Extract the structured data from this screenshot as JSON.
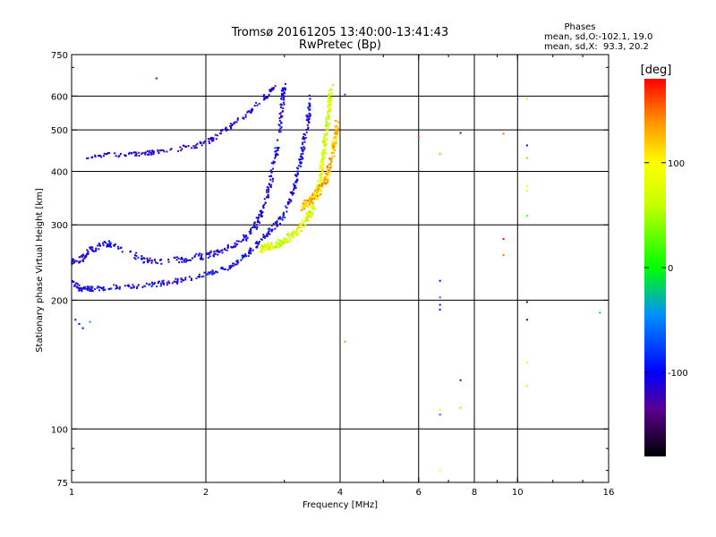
{
  "chart_data": {
    "type": "scatter",
    "title": "Tromsø 20161205 13:40:00-13:41:43",
    "subtitle": "RwPretec (Bp)",
    "stats": {
      "heading": "Phases",
      "line1": "mean, sd,O:-102.1, 19.0",
      "line2": "mean, sd,X:  93.3, 20.2"
    },
    "xlabel": "Frequency [MHz]",
    "ylabel": "Stationary phase Virtual Height [km]",
    "x_scale": "log",
    "y_scale": "log",
    "xlim": [
      1,
      16
    ],
    "ylim": [
      75,
      750
    ],
    "x_ticks": [
      {
        "value": 1,
        "label": "1"
      },
      {
        "value": 2,
        "label": "2"
      },
      {
        "value": 4,
        "label": "4"
      },
      {
        "value": 6,
        "label": "6"
      },
      {
        "value": 8,
        "label": "8"
      },
      {
        "value": 10,
        "label": "10"
      },
      {
        "value": 16,
        "label": "16"
      }
    ],
    "x_grid": [
      2,
      4,
      6,
      8,
      10
    ],
    "y_ticks": [
      {
        "value": 75,
        "label": "75"
      },
      {
        "value": 100,
        "label": "100"
      },
      {
        "value": 200,
        "label": "200"
      },
      {
        "value": 300,
        "label": "300"
      },
      {
        "value": 400,
        "label": "400"
      },
      {
        "value": 500,
        "label": "500"
      },
      {
        "value": 600,
        "label": "600"
      },
      {
        "value": 750,
        "label": "750"
      }
    ],
    "y_grid": [
      100,
      200,
      300,
      400,
      500,
      600
    ],
    "grid": true,
    "colorbar": {
      "label": "[deg]",
      "min": -180,
      "max": 180,
      "ticks": [
        {
          "value": 100,
          "label": "100"
        },
        {
          "value": 0,
          "label": "0"
        },
        {
          "value": -100,
          "label": "-100"
        }
      ],
      "stops": [
        {
          "value": -180,
          "color": "#000000"
        },
        {
          "value": -135,
          "color": "#5a0090"
        },
        {
          "value": -100,
          "color": "#0000ff"
        },
        {
          "value": -45,
          "color": "#0090ff"
        },
        {
          "value": 0,
          "color": "#00ff00"
        },
        {
          "value": 60,
          "color": "#c8ff00"
        },
        {
          "value": 100,
          "color": "#ffff00"
        },
        {
          "value": 140,
          "color": "#ff9000"
        },
        {
          "value": 180,
          "color": "#ff0000"
        }
      ]
    },
    "traces": [
      {
        "name": "",
        "points": [
          [
            1.08,
            430
          ],
          [
            1.15,
            436
          ],
          [
            1.3,
            437
          ],
          [
            1.45,
            440
          ],
          [
            1.6,
            446
          ],
          [
            1.75,
            452
          ],
          [
            1.9,
            460
          ],
          [
            2.05,
            472
          ],
          [
            2.2,
            500
          ],
          [
            2.4,
            530
          ],
          [
            2.6,
            570
          ],
          [
            2.75,
            605
          ],
          [
            2.85,
            630
          ]
        ],
        "phase": [
          -135,
          -95
        ],
        "spread": 0.012,
        "n": 170
      },
      {
        "name": "",
        "points": [
          [
            1.0,
            245
          ],
          [
            1.05,
            250
          ],
          [
            1.1,
            262
          ],
          [
            1.2,
            272
          ],
          [
            1.3,
            262
          ],
          [
            1.45,
            248
          ],
          [
            1.6,
            246
          ],
          [
            1.8,
            250
          ],
          [
            2.0,
            254
          ],
          [
            2.2,
            262
          ],
          [
            2.4,
            276
          ],
          [
            2.55,
            290
          ],
          [
            2.65,
            315
          ],
          [
            2.75,
            350
          ],
          [
            2.82,
            395
          ],
          [
            2.88,
            450
          ],
          [
            2.94,
            520
          ],
          [
            2.98,
            600
          ],
          [
            3.0,
            640
          ]
        ],
        "phase": [
          -128,
          -85
        ],
        "spread": 0.016,
        "n": 360
      },
      {
        "name": "",
        "points": [
          [
            1.0,
            220
          ],
          [
            1.05,
            212
          ],
          [
            1.15,
            213
          ],
          [
            1.3,
            215
          ],
          [
            1.5,
            217
          ],
          [
            1.7,
            221
          ],
          [
            1.9,
            226
          ],
          [
            2.1,
            233
          ],
          [
            2.3,
            242
          ],
          [
            2.5,
            258
          ],
          [
            2.7,
            280
          ],
          [
            2.85,
            298
          ],
          [
            3.0,
            318
          ],
          [
            3.1,
            345
          ],
          [
            3.2,
            390
          ],
          [
            3.3,
            450
          ],
          [
            3.38,
            520
          ],
          [
            3.45,
            600
          ]
        ],
        "phase": [
          -135,
          -75
        ],
        "spread": 0.013,
        "n": 380
      },
      {
        "name": "",
        "points": [
          [
            2.65,
            262
          ],
          [
            2.8,
            268
          ],
          [
            3.0,
            275
          ],
          [
            3.2,
            290
          ],
          [
            3.4,
            312
          ],
          [
            3.52,
            345
          ],
          [
            3.6,
            380
          ],
          [
            3.66,
            430
          ],
          [
            3.72,
            490
          ],
          [
            3.78,
            560
          ],
          [
            3.82,
            630
          ]
        ],
        "phase": [
          40,
          115
        ],
        "spread": 0.02,
        "n": 360
      },
      {
        "name": "",
        "points": [
          [
            3.3,
            330
          ],
          [
            3.4,
            340
          ],
          [
            3.5,
            350
          ],
          [
            3.6,
            362
          ],
          [
            3.7,
            380
          ],
          [
            3.78,
            405
          ],
          [
            3.85,
            440
          ],
          [
            3.9,
            480
          ],
          [
            3.95,
            520
          ]
        ],
        "phase": [
          95,
          155
        ],
        "spread": 0.022,
        "n": 230
      }
    ],
    "isolated_points": [
      {
        "x": 1.55,
        "y": 660,
        "phase": -140
      },
      {
        "x": 1.02,
        "y": 180,
        "phase": -110
      },
      {
        "x": 1.04,
        "y": 176,
        "phase": -100
      },
      {
        "x": 1.06,
        "y": 172,
        "phase": -105
      },
      {
        "x": 1.1,
        "y": 178,
        "phase": -40
      },
      {
        "x": 4.1,
        "y": 605,
        "phase": -70
      },
      {
        "x": 4.1,
        "y": 160,
        "phase": 140
      },
      {
        "x": 6.0,
        "y": 482,
        "phase": 160
      },
      {
        "x": 6.7,
        "y": 440,
        "phase": 30
      },
      {
        "x": 6.7,
        "y": 222,
        "phase": -100
      },
      {
        "x": 6.7,
        "y": 203,
        "phase": -60
      },
      {
        "x": 6.7,
        "y": 195,
        "phase": -100
      },
      {
        "x": 6.7,
        "y": 190,
        "phase": -130
      },
      {
        "x": 6.7,
        "y": 111,
        "phase": 100
      },
      {
        "x": 6.7,
        "y": 108,
        "phase": -60
      },
      {
        "x": 6.7,
        "y": 80,
        "phase": 100
      },
      {
        "x": 7.45,
        "y": 492,
        "phase": -130
      },
      {
        "x": 7.45,
        "y": 130,
        "phase": -120
      },
      {
        "x": 7.45,
        "y": 112,
        "phase": 40
      },
      {
        "x": 9.3,
        "y": 490,
        "phase": 150
      },
      {
        "x": 9.3,
        "y": 278,
        "phase": 175
      },
      {
        "x": 9.3,
        "y": 255,
        "phase": 150
      },
      {
        "x": 10.5,
        "y": 590,
        "phase": 80
      },
      {
        "x": 10.5,
        "y": 460,
        "phase": -105
      },
      {
        "x": 10.5,
        "y": 430,
        "phase": 130
      },
      {
        "x": 10.5,
        "y": 370,
        "phase": 90
      },
      {
        "x": 10.5,
        "y": 360,
        "phase": 70
      },
      {
        "x": 10.5,
        "y": 315,
        "phase": 20
      },
      {
        "x": 10.5,
        "y": 198,
        "phase": -150
      },
      {
        "x": 10.5,
        "y": 180,
        "phase": -140
      },
      {
        "x": 10.5,
        "y": 143,
        "phase": 100
      },
      {
        "x": 10.5,
        "y": 126,
        "phase": 110
      },
      {
        "x": 15.3,
        "y": 187,
        "phase": -20
      }
    ]
  }
}
